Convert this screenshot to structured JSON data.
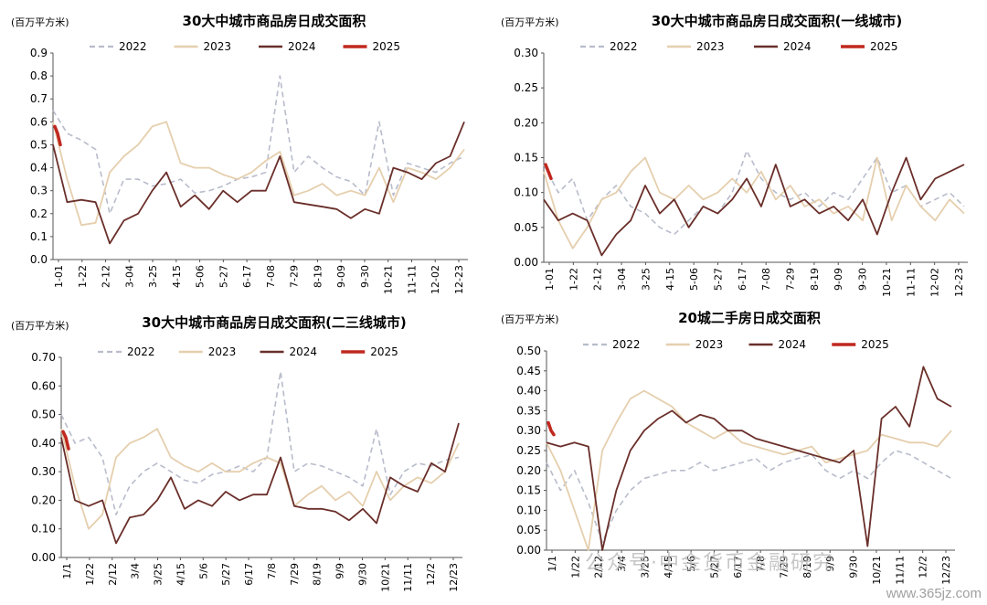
{
  "watermark": "公众号·中金货币金融研究",
  "site": "www.365jz.com",
  "colors": {
    "2022": "#b8bccb",
    "2023": "#e5cfae",
    "2024": "#6a2f2a",
    "2025": "#c0281f"
  },
  "chart_data": [
    {
      "type": "line",
      "title": "30大中城市商品房日成交面积",
      "ylabel": "(百万平方米)",
      "ylim": [
        0,
        0.9
      ],
      "yticks": [
        "0.0",
        "0.1",
        "0.2",
        "0.3",
        "0.4",
        "0.5",
        "0.6",
        "0.7",
        "0.8",
        "0.9"
      ],
      "xticks": [
        "1-01",
        "1-22",
        "2-12",
        "3-04",
        "3-25",
        "4-15",
        "5-06",
        "5-27",
        "6-17",
        "7-08",
        "7-29",
        "8-19",
        "9-09",
        "9-30",
        "10-21",
        "11-11",
        "12-02",
        "12-23"
      ],
      "legend": [
        "2022",
        "2023",
        "2024",
        "2025"
      ],
      "series": [
        {
          "name": "2022",
          "values": [
            0.65,
            0.55,
            0.52,
            0.48,
            0.2,
            0.35,
            0.35,
            0.32,
            0.33,
            0.35,
            0.29,
            0.3,
            0.32,
            0.35,
            0.36,
            0.38,
            0.8,
            0.38,
            0.45,
            0.4,
            0.36,
            0.34,
            0.28,
            0.6,
            0.28,
            0.42,
            0.4,
            0.38,
            0.42,
            0.45
          ]
        },
        {
          "name": "2023",
          "values": [
            0.6,
            0.35,
            0.15,
            0.16,
            0.38,
            0.45,
            0.5,
            0.58,
            0.6,
            0.42,
            0.4,
            0.4,
            0.37,
            0.35,
            0.38,
            0.43,
            0.47,
            0.28,
            0.3,
            0.33,
            0.28,
            0.3,
            0.28,
            0.4,
            0.25,
            0.4,
            0.38,
            0.35,
            0.4,
            0.48
          ]
        },
        {
          "name": "2024",
          "values": [
            0.5,
            0.25,
            0.26,
            0.25,
            0.07,
            0.17,
            0.2,
            0.3,
            0.38,
            0.23,
            0.28,
            0.22,
            0.3,
            0.25,
            0.3,
            0.3,
            0.45,
            0.25,
            0.24,
            0.23,
            0.22,
            0.18,
            0.22,
            0.2,
            0.4,
            0.38,
            0.35,
            0.42,
            0.45,
            0.6
          ]
        },
        {
          "name": "2025",
          "values": [
            0.58,
            0.55,
            0.5
          ]
        }
      ]
    },
    {
      "type": "line",
      "title": "30大中城市商品房日成交面积(一线城市)",
      "ylabel": "(百万平方米)",
      "ylim": [
        0,
        0.3
      ],
      "yticks": [
        "0.00",
        "0.05",
        "0.10",
        "0.15",
        "0.20",
        "0.25",
        "0.30"
      ],
      "xticks": [
        "1-01",
        "1-22",
        "2-12",
        "3-04",
        "3-25",
        "4-15",
        "5-06",
        "5-27",
        "6-17",
        "7-08",
        "7-29",
        "8-19",
        "9-09",
        "9-30",
        "10-21",
        "11-11",
        "12-02",
        "12-23"
      ],
      "legend": [
        "2022",
        "2023",
        "2024",
        "2025"
      ],
      "series": [
        {
          "name": "2022",
          "values": [
            0.14,
            0.1,
            0.12,
            0.06,
            0.09,
            0.11,
            0.08,
            0.07,
            0.05,
            0.04,
            0.06,
            0.08,
            0.07,
            0.1,
            0.16,
            0.12,
            0.1,
            0.09,
            0.1,
            0.08,
            0.1,
            0.09,
            0.12,
            0.15,
            0.1,
            0.11,
            0.08,
            0.09,
            0.1,
            0.08
          ]
        },
        {
          "name": "2023",
          "values": [
            0.13,
            0.06,
            0.02,
            0.05,
            0.09,
            0.1,
            0.13,
            0.15,
            0.1,
            0.09,
            0.11,
            0.09,
            0.1,
            0.12,
            0.1,
            0.13,
            0.09,
            0.11,
            0.08,
            0.09,
            0.07,
            0.08,
            0.06,
            0.15,
            0.06,
            0.11,
            0.08,
            0.06,
            0.09,
            0.07
          ]
        },
        {
          "name": "2024",
          "values": [
            0.09,
            0.06,
            0.07,
            0.06,
            0.01,
            0.04,
            0.06,
            0.11,
            0.07,
            0.09,
            0.05,
            0.08,
            0.07,
            0.09,
            0.12,
            0.08,
            0.14,
            0.08,
            0.09,
            0.07,
            0.08,
            0.06,
            0.09,
            0.04,
            0.1,
            0.15,
            0.09,
            0.12,
            0.13,
            0.14
          ]
        },
        {
          "name": "2025",
          "values": [
            0.14,
            0.13,
            0.12
          ]
        }
      ]
    },
    {
      "type": "line",
      "title": "30大中城市商品房日成交面积(二三线城市)",
      "ylabel": "(百万平方米)",
      "ylim": [
        0,
        0.7
      ],
      "yticks": [
        "0.00",
        "0.10",
        "0.20",
        "0.30",
        "0.40",
        "0.50",
        "0.60",
        "0.70"
      ],
      "xticks": [
        "1/1",
        "1/22",
        "2/12",
        "3/4",
        "3/25",
        "4/15",
        "5/6",
        "5/27",
        "6/17",
        "7/8",
        "7/29",
        "8/19",
        "9/9",
        "9/30",
        "10/21",
        "11/11",
        "12/2",
        "12/23"
      ],
      "legend": [
        "2022",
        "2023",
        "2024",
        "2025"
      ],
      "series": [
        {
          "name": "2022",
          "values": [
            0.5,
            0.4,
            0.42,
            0.35,
            0.15,
            0.25,
            0.3,
            0.33,
            0.3,
            0.27,
            0.26,
            0.29,
            0.3,
            0.32,
            0.3,
            0.35,
            0.65,
            0.3,
            0.33,
            0.32,
            0.3,
            0.28,
            0.25,
            0.45,
            0.22,
            0.3,
            0.33,
            0.32,
            0.34,
            0.35
          ]
        },
        {
          "name": "2023",
          "values": [
            0.45,
            0.25,
            0.1,
            0.15,
            0.35,
            0.4,
            0.42,
            0.45,
            0.35,
            0.32,
            0.3,
            0.33,
            0.3,
            0.3,
            0.33,
            0.35,
            0.33,
            0.18,
            0.22,
            0.25,
            0.2,
            0.23,
            0.18,
            0.3,
            0.2,
            0.25,
            0.28,
            0.26,
            0.3,
            0.4
          ]
        },
        {
          "name": "2024",
          "values": [
            0.42,
            0.2,
            0.18,
            0.2,
            0.05,
            0.14,
            0.15,
            0.2,
            0.28,
            0.17,
            0.2,
            0.18,
            0.23,
            0.2,
            0.22,
            0.22,
            0.35,
            0.18,
            0.17,
            0.17,
            0.16,
            0.13,
            0.17,
            0.12,
            0.28,
            0.25,
            0.23,
            0.33,
            0.3,
            0.47
          ]
        },
        {
          "name": "2025",
          "values": [
            0.44,
            0.42,
            0.38
          ]
        }
      ]
    },
    {
      "type": "line",
      "title": "20城二手房日成交面积",
      "ylabel": "(百万平方米)",
      "ylim": [
        0,
        0.5
      ],
      "yticks": [
        "0.00",
        "0.05",
        "0.10",
        "0.15",
        "0.20",
        "0.25",
        "0.30",
        "0.35",
        "0.40",
        "0.45",
        "0.50"
      ],
      "xticks": [
        "1/1",
        "1/22",
        "2/12",
        "3/4",
        "3/25",
        "4/15",
        "5/6",
        "5/27",
        "6/17",
        "7/8",
        "7/29",
        "8/19",
        "9/9",
        "9/30",
        "10/21",
        "11/11",
        "12/2",
        "12/23"
      ],
      "legend": [
        "2022",
        "2023",
        "2024",
        "2025"
      ],
      "series": [
        {
          "name": "2022",
          "values": [
            0.22,
            0.15,
            0.2,
            0.12,
            0.02,
            0.1,
            0.15,
            0.18,
            0.19,
            0.2,
            0.2,
            0.22,
            0.2,
            0.21,
            0.22,
            0.23,
            0.2,
            0.22,
            0.23,
            0.24,
            0.2,
            0.18,
            0.2,
            0.18,
            0.22,
            0.25,
            0.24,
            0.22,
            0.2,
            0.18
          ]
        },
        {
          "name": "2023",
          "values": [
            0.27,
            0.2,
            0.1,
            0.0,
            0.25,
            0.32,
            0.38,
            0.4,
            0.38,
            0.36,
            0.32,
            0.3,
            0.28,
            0.3,
            0.27,
            0.26,
            0.25,
            0.24,
            0.25,
            0.26,
            0.22,
            0.23,
            0.24,
            0.25,
            0.29,
            0.28,
            0.27,
            0.27,
            0.26,
            0.3
          ]
        },
        {
          "name": "2024",
          "values": [
            0.27,
            0.26,
            0.27,
            0.26,
            0.0,
            0.15,
            0.25,
            0.3,
            0.33,
            0.35,
            0.32,
            0.34,
            0.33,
            0.3,
            0.3,
            0.28,
            0.27,
            0.26,
            0.25,
            0.24,
            0.23,
            0.22,
            0.25,
            0.01,
            0.33,
            0.36,
            0.31,
            0.46,
            0.38,
            0.36
          ]
        },
        {
          "name": "2025",
          "values": [
            0.32,
            0.3,
            0.29
          ]
        }
      ]
    }
  ]
}
